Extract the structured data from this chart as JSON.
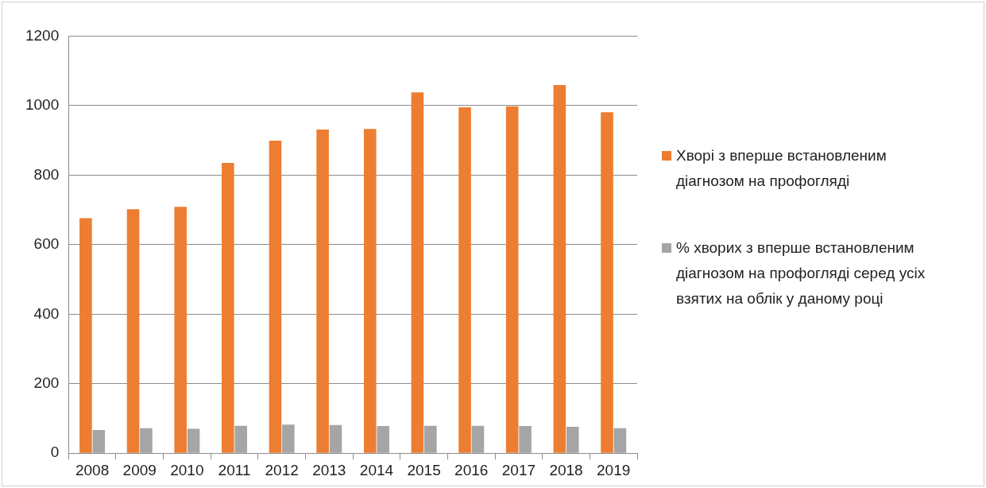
{
  "chart_data": {
    "type": "bar",
    "categories": [
      "2008",
      "2009",
      "2010",
      "2011",
      "2012",
      "2013",
      "2014",
      "2015",
      "2016",
      "2017",
      "2018",
      "2019"
    ],
    "series": [
      {
        "name": "Хворі з вперше встановленим діагнозом на профогляді",
        "color": "#ed7d31",
        "values": [
          676,
          702,
          709,
          835,
          899,
          931,
          933,
          1038,
          995,
          998,
          1059,
          981
        ]
      },
      {
        "name": "% хворих з вперше встановленим діагнозом на профогляді  серед усіх взятих на облік у даному році",
        "color": "#a5a5a5",
        "values": [
          67,
          72,
          70,
          79,
          82,
          81,
          78,
          79,
          79,
          78,
          76,
          72
        ]
      }
    ],
    "ylim": [
      0,
      1200
    ],
    "yticks": [
      0,
      200,
      400,
      600,
      800,
      1000,
      1200
    ],
    "grid": "y",
    "legend": "right"
  }
}
